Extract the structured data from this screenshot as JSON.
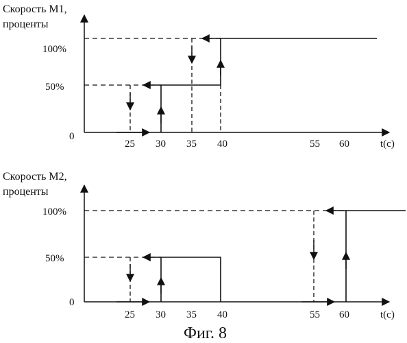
{
  "panel1": {
    "ylabel_line1": "Скорость М1,",
    "ylabel_line2": "проценты",
    "y100": "100%",
    "y50": "50%",
    "y0": "0",
    "x_ticks": [
      "25",
      "30",
      "35",
      "40",
      "55",
      "60"
    ],
    "xlabel": "t(с)"
  },
  "panel2": {
    "ylabel_line1": "Скорость М2,",
    "ylabel_line2": "проценты",
    "y100": "100%",
    "y50": "50%",
    "y0": "0",
    "x_ticks": [
      "25",
      "30",
      "35",
      "40",
      "55",
      "60"
    ],
    "xlabel": "t(с)"
  },
  "caption": "Фиг. 8"
}
